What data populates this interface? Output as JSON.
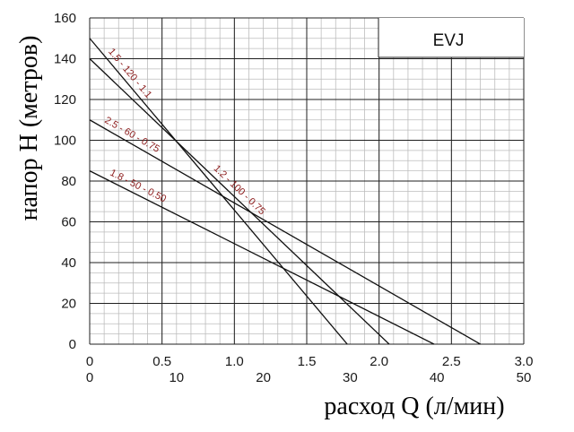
{
  "chart_data": {
    "type": "line",
    "badge": "EVJ",
    "xlabel": "расход Q (л/мин)",
    "ylabel": "напор H (метров)",
    "xlim": [
      0,
      3.0
    ],
    "ylim": [
      0,
      160
    ],
    "x_ticks": [
      "0",
      "0.5",
      "1.0",
      "1.5",
      "2.0",
      "2.5",
      "3.0"
    ],
    "x2_ticks": [
      "0",
      "10",
      "20",
      "30",
      "40",
      "50"
    ],
    "y_ticks": [
      "0",
      "20",
      "40",
      "60",
      "80",
      "100",
      "120",
      "140",
      "160"
    ],
    "grid": true,
    "series": [
      {
        "name": "1.5 - 120 - 1.1",
        "x": [
          0,
          1.78
        ],
        "y": [
          150,
          0
        ]
      },
      {
        "name": "1.2 - 100 - 0.75",
        "x": [
          0,
          2.07
        ],
        "y": [
          140,
          0
        ]
      },
      {
        "name": "2.5 - 60 - 0.75",
        "x": [
          0,
          2.7
        ],
        "y": [
          110,
          0
        ]
      },
      {
        "name": "1.8 - 50 - 0.50",
        "x": [
          0,
          2.38
        ],
        "y": [
          85,
          0
        ]
      }
    ],
    "colors": {
      "line": "#111111",
      "grid_major": "#1f1f1f",
      "grid_minor": "#bdbdbd",
      "label": "#8b1a1a"
    }
  }
}
